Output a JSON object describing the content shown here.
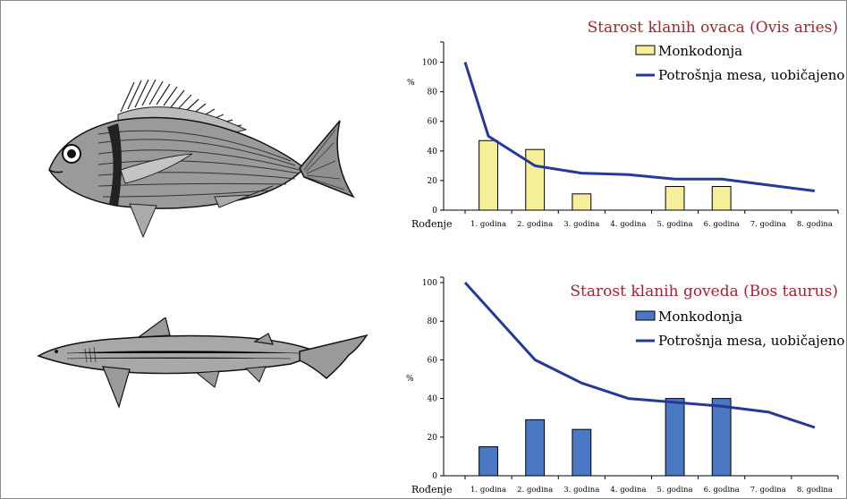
{
  "charts_colors": {
    "title": "#a8222b",
    "line": "#24399a",
    "bar_sheep": "#f6ef9a",
    "bar_cattle": "#4a78c2",
    "axis": "#000000"
  },
  "illustrations": {
    "top": "fish-drawing",
    "bottom": "shark-drawing"
  },
  "chart_data": [
    {
      "type": "bar",
      "title": "Starost klanih ovaca (Ovis aries)",
      "ylabel": "%",
      "xlabel": "",
      "ylim": [
        0,
        110
      ],
      "yticks": [
        0,
        20,
        40,
        60,
        80,
        100
      ],
      "x_start_label": "Rođenje",
      "categories": [
        "1. godina",
        "2. godina",
        "3. godina",
        "4. godina",
        "5. godina",
        "6. godina",
        "7. godina",
        "8. godina"
      ],
      "legend_position": "top-right",
      "series": [
        {
          "name": "Monkodonja",
          "kind": "bar",
          "values": [
            47,
            41,
            11,
            0,
            16,
            16,
            0,
            0
          ]
        },
        {
          "name": "Potrošnja mesa, uobičajeno",
          "kind": "line",
          "x": [
            0,
            0.5,
            1.5,
            2.5,
            3.5,
            4.5,
            5.5,
            6.5,
            7.5
          ],
          "values": [
            100,
            50,
            30,
            25,
            24,
            21,
            21,
            17,
            13
          ]
        }
      ]
    },
    {
      "type": "bar",
      "title": "Starost klanih goveda (Bos taurus)",
      "ylabel": "%",
      "xlabel": "",
      "ylim": [
        0,
        100
      ],
      "yticks": [
        0,
        20,
        40,
        60,
        80,
        100
      ],
      "x_start_label": "Rođenje",
      "categories": [
        "1. godina",
        "2. godina",
        "3. godina",
        "4. godina",
        "5. godina",
        "6. godina",
        "7. godina",
        "8. godina"
      ],
      "legend_position": "top-right",
      "series": [
        {
          "name": "Monkodonja",
          "kind": "bar",
          "values": [
            15,
            29,
            24,
            0,
            40,
            40,
            0,
            0
          ]
        },
        {
          "name": "Potrošnja mesa, uobičajeno",
          "kind": "line",
          "x": [
            0,
            1.5,
            2.5,
            3.5,
            4.5,
            5.5,
            6.5,
            7.5
          ],
          "values": [
            100,
            60,
            48,
            40,
            38,
            36,
            33,
            25
          ]
        }
      ]
    }
  ]
}
